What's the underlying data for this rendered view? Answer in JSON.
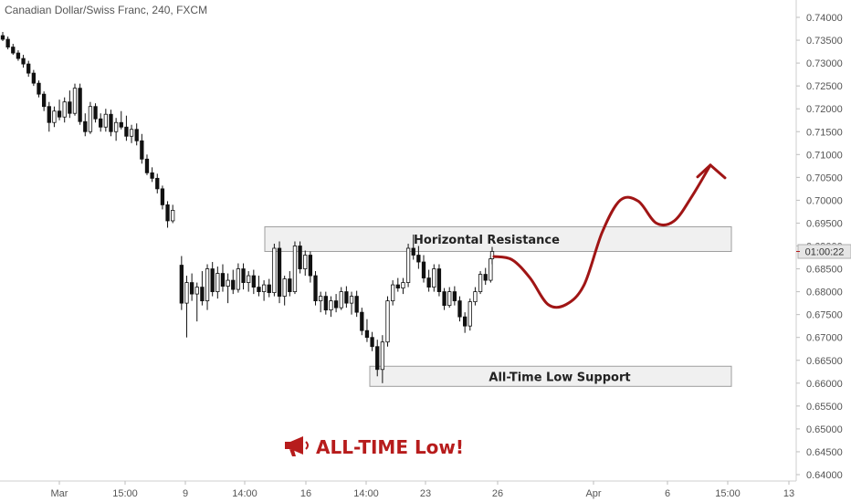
{
  "chart_data": {
    "type": "candlestick",
    "title": "Canadian Dollar/Swiss Franc, 240, FXCM",
    "ylim": [
      0.6375,
      0.7435
    ],
    "y_ticks": [
      "0.74000",
      "0.73500",
      "0.73000",
      "0.72500",
      "0.72000",
      "0.71500",
      "0.71000",
      "0.70500",
      "0.70000",
      "0.69500",
      "0.69000",
      "0.68500",
      "0.68000",
      "0.67500",
      "0.67000",
      "0.66500",
      "0.66000",
      "0.65500",
      "0.65000",
      "0.64500",
      "0.64000"
    ],
    "x_ticks": [
      "Mar",
      "15:00",
      "9",
      "14:00",
      "16",
      "14:00",
      "23",
      "26",
      "Apr",
      "6",
      "15:00",
      "13"
    ],
    "current_price_label": "01:00:22",
    "colors": {
      "up": "#ffffff",
      "down": "#111111",
      "wick": "#111111",
      "arrow": "#a01515",
      "zone_fill": "#f0f0f0",
      "zone_stroke": "#9e9e9e",
      "tag": "#b71c1c"
    },
    "annotations": {
      "resistance": "Horizontal Resistance",
      "support": "All-Time Low Support",
      "headline": "ALL-TIME Low!"
    },
    "zones": {
      "resistance": [
        0.6888,
        0.6942
      ],
      "support": [
        0.6593,
        0.6637
      ]
    },
    "forecast_path": [
      [
        0.6877,
        0.687,
        0.683,
        0.6772,
        0.6772,
        0.6815,
        0.693,
        0.7,
        0.6998,
        0.695,
        0.6955,
        0.701,
        0.7077
      ]
    ],
    "candles": [
      [
        0.736,
        0.7368,
        0.7348,
        0.7352
      ],
      [
        0.7352,
        0.7358,
        0.733,
        0.7335
      ],
      [
        0.7335,
        0.7342,
        0.7318,
        0.7322
      ],
      [
        0.7322,
        0.7328,
        0.7305,
        0.731
      ],
      [
        0.731,
        0.7318,
        0.729,
        0.7298
      ],
      [
        0.7298,
        0.7305,
        0.727,
        0.7278
      ],
      [
        0.7278,
        0.7285,
        0.725,
        0.7256
      ],
      [
        0.7256,
        0.7262,
        0.7225,
        0.7232
      ],
      [
        0.7232,
        0.7238,
        0.7195,
        0.7205
      ],
      [
        0.7205,
        0.7215,
        0.715,
        0.717
      ],
      [
        0.717,
        0.7205,
        0.716,
        0.7195
      ],
      [
        0.7195,
        0.722,
        0.7175,
        0.7182
      ],
      [
        0.7182,
        0.7225,
        0.717,
        0.7215
      ],
      [
        0.7215,
        0.724,
        0.718,
        0.719
      ],
      [
        0.719,
        0.7255,
        0.7185,
        0.7245
      ],
      [
        0.7245,
        0.7255,
        0.7165,
        0.7172
      ],
      [
        0.7172,
        0.719,
        0.714,
        0.715
      ],
      [
        0.715,
        0.7215,
        0.7145,
        0.7205
      ],
      [
        0.7205,
        0.7212,
        0.717,
        0.7178
      ],
      [
        0.7178,
        0.719,
        0.715,
        0.716
      ],
      [
        0.716,
        0.72,
        0.715,
        0.7188
      ],
      [
        0.7188,
        0.7198,
        0.714,
        0.715
      ],
      [
        0.715,
        0.718,
        0.713,
        0.717
      ],
      [
        0.717,
        0.7195,
        0.7155,
        0.716
      ],
      [
        0.716,
        0.7185,
        0.713,
        0.714
      ],
      [
        0.714,
        0.7165,
        0.7125,
        0.7155
      ],
      [
        0.7155,
        0.7168,
        0.712,
        0.713
      ],
      [
        0.713,
        0.7145,
        0.708,
        0.709
      ],
      [
        0.709,
        0.71,
        0.7055,
        0.706
      ],
      [
        0.706,
        0.7072,
        0.704,
        0.7048
      ],
      [
        0.7048,
        0.7058,
        0.7015,
        0.7025
      ],
      [
        0.7025,
        0.7032,
        0.698,
        0.699
      ],
      [
        0.699,
        0.6998,
        0.694,
        0.6955
      ],
      [
        0.6955,
        0.699,
        0.695,
        0.6978
      ],
      [
        0.6858,
        0.6878,
        0.676,
        0.6775
      ],
      [
        0.6775,
        0.6835,
        0.67,
        0.682
      ],
      [
        0.682,
        0.684,
        0.678,
        0.6795
      ],
      [
        0.6795,
        0.682,
        0.6735,
        0.681
      ],
      [
        0.681,
        0.6845,
        0.677,
        0.678
      ],
      [
        0.678,
        0.686,
        0.676,
        0.685
      ],
      [
        0.685,
        0.6865,
        0.679,
        0.68
      ],
      [
        0.68,
        0.6855,
        0.6785,
        0.684
      ],
      [
        0.684,
        0.686,
        0.68,
        0.6812
      ],
      [
        0.6812,
        0.684,
        0.6775,
        0.6825
      ],
      [
        0.6825,
        0.6848,
        0.6795,
        0.6805
      ],
      [
        0.6805,
        0.6862,
        0.6798,
        0.685
      ],
      [
        0.685,
        0.6862,
        0.6805,
        0.682
      ],
      [
        0.682,
        0.6845,
        0.68,
        0.6835
      ],
      [
        0.6835,
        0.6848,
        0.6795,
        0.681
      ],
      [
        0.681,
        0.6835,
        0.679,
        0.68
      ],
      [
        0.68,
        0.6825,
        0.678,
        0.6815
      ],
      [
        0.6815,
        0.6828,
        0.6788,
        0.6798
      ],
      [
        0.6798,
        0.6905,
        0.679,
        0.6895
      ],
      [
        0.6895,
        0.691,
        0.6775,
        0.679
      ],
      [
        0.679,
        0.6835,
        0.677,
        0.6828
      ],
      [
        0.6828,
        0.6845,
        0.679,
        0.68
      ],
      [
        0.68,
        0.691,
        0.6795,
        0.69
      ],
      [
        0.69,
        0.691,
        0.684,
        0.685
      ],
      [
        0.685,
        0.689,
        0.6835,
        0.688
      ],
      [
        0.688,
        0.6888,
        0.682,
        0.6835
      ],
      [
        0.6835,
        0.6845,
        0.677,
        0.678
      ],
      [
        0.678,
        0.68,
        0.6755,
        0.679
      ],
      [
        0.679,
        0.68,
        0.675,
        0.676
      ],
      [
        0.676,
        0.679,
        0.6745,
        0.678
      ],
      [
        0.678,
        0.6795,
        0.6755,
        0.6765
      ],
      [
        0.6765,
        0.681,
        0.676,
        0.68
      ],
      [
        0.68,
        0.6812,
        0.6765,
        0.6775
      ],
      [
        0.6775,
        0.68,
        0.675,
        0.679
      ],
      [
        0.679,
        0.6802,
        0.6745,
        0.6755
      ],
      [
        0.6755,
        0.6765,
        0.6705,
        0.6715
      ],
      [
        0.6715,
        0.674,
        0.669,
        0.67
      ],
      [
        0.67,
        0.6712,
        0.667,
        0.668
      ],
      [
        0.668,
        0.6695,
        0.6615,
        0.663
      ],
      [
        0.663,
        0.6705,
        0.66,
        0.669
      ],
      [
        0.669,
        0.679,
        0.668,
        0.678
      ],
      [
        0.678,
        0.6825,
        0.677,
        0.6815
      ],
      [
        0.6815,
        0.683,
        0.68,
        0.6808
      ],
      [
        0.6808,
        0.683,
        0.6795,
        0.682
      ],
      [
        0.682,
        0.6905,
        0.681,
        0.6895
      ],
      [
        0.6895,
        0.6925,
        0.687,
        0.688
      ],
      [
        0.688,
        0.69,
        0.685,
        0.6865
      ],
      [
        0.6865,
        0.688,
        0.682,
        0.683
      ],
      [
        0.683,
        0.6848,
        0.68,
        0.681
      ],
      [
        0.681,
        0.686,
        0.68,
        0.685
      ],
      [
        0.685,
        0.686,
        0.679,
        0.68
      ],
      [
        0.68,
        0.6808,
        0.676,
        0.677
      ],
      [
        0.677,
        0.681,
        0.6765,
        0.68
      ],
      [
        0.68,
        0.6812,
        0.677,
        0.678
      ],
      [
        0.678,
        0.679,
        0.6735,
        0.6745
      ],
      [
        0.6745,
        0.6755,
        0.671,
        0.6725
      ],
      [
        0.6725,
        0.6785,
        0.6715,
        0.6778
      ],
      [
        0.6778,
        0.681,
        0.677,
        0.68
      ],
      [
        0.68,
        0.6845,
        0.6795,
        0.6838
      ],
      [
        0.6838,
        0.6852,
        0.6815,
        0.6825
      ],
      [
        0.6825,
        0.688,
        0.682,
        0.6872
      ],
      [
        0.6872,
        0.6898,
        0.686,
        0.6888
      ]
    ]
  }
}
